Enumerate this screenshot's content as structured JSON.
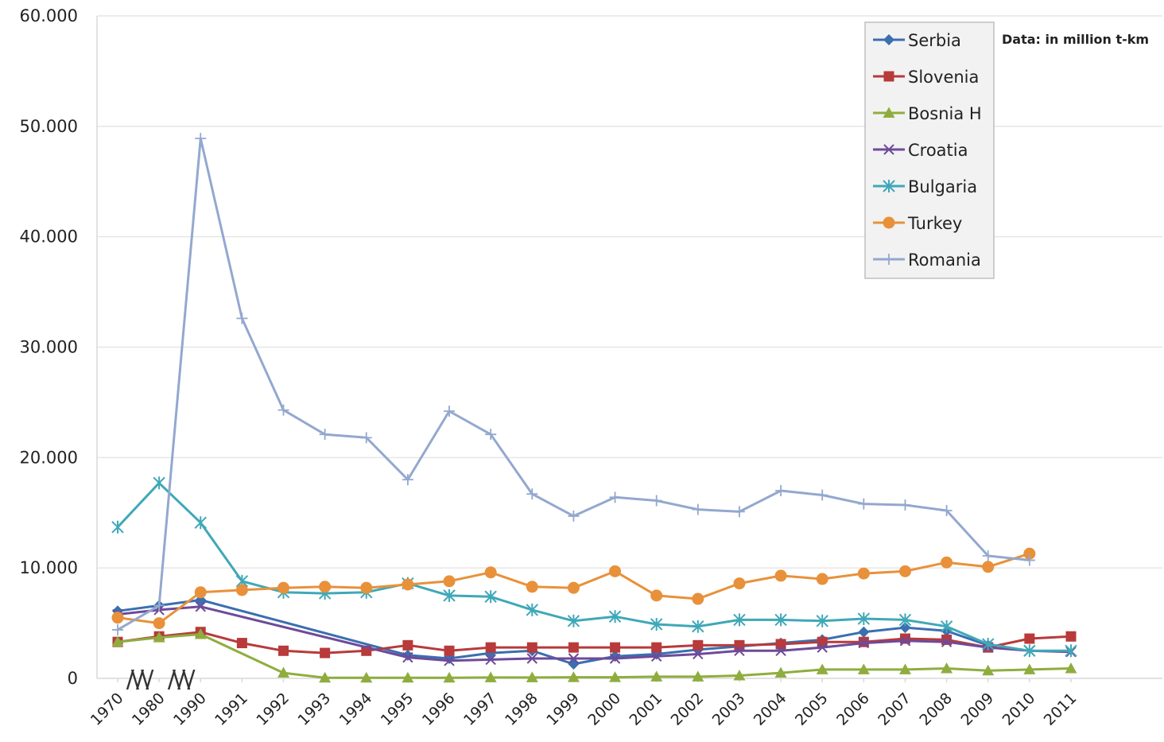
{
  "chart_data": {
    "type": "line",
    "title": "",
    "xlabel": "",
    "ylabel": "",
    "note": "Data: in million t-km",
    "x": [
      "1970",
      "1980",
      "1990",
      "1991",
      "1992",
      "1993",
      "1994",
      "1995",
      "1996",
      "1997",
      "1998",
      "1999",
      "2000",
      "2001",
      "2002",
      "2003",
      "2004",
      "2005",
      "2006",
      "2007",
      "2008",
      "2009",
      "2010",
      "2011"
    ],
    "ylim": [
      0,
      60000
    ],
    "yticks": [
      0,
      10000,
      20000,
      30000,
      40000,
      50000,
      60000
    ],
    "ytick_labels": [
      "0",
      "10.000",
      "20.000",
      "30.000",
      "40.000",
      "50.000",
      "60.000"
    ],
    "axis_break_labels": [
      "/\\/\\/",
      "/\\/\\/"
    ],
    "grid": true,
    "legend_position": "top-right",
    "series": [
      {
        "name": "Serbia",
        "color": "#3a6fb0",
        "marker": "diamond",
        "values": [
          6100,
          6600,
          7100,
          null,
          null,
          null,
          null,
          2100,
          1800,
          2300,
          2500,
          1300,
          2000,
          2200,
          2600,
          2900,
          3200,
          3500,
          4200,
          4600,
          4300,
          3000,
          null,
          null
        ]
      },
      {
        "name": "Slovenia",
        "color": "#b83a3a",
        "marker": "square",
        "values": [
          3300,
          3800,
          4200,
          3200,
          2500,
          2300,
          2500,
          3000,
          2500,
          2800,
          2800,
          2800,
          2800,
          2800,
          3000,
          3000,
          3100,
          3300,
          3300,
          3600,
          3500,
          2800,
          3600,
          3800
        ]
      },
      {
        "name": "Bosnia H",
        "color": "#8fad3f",
        "marker": "triangle",
        "values": [
          3300,
          3700,
          4000,
          null,
          500,
          50,
          50,
          50,
          50,
          80,
          80,
          100,
          100,
          150,
          150,
          250,
          500,
          800,
          800,
          800,
          900,
          700,
          800,
          900
        ]
      },
      {
        "name": "Croatia",
        "color": "#6e4a9a",
        "marker": "x",
        "values": [
          5800,
          6200,
          6500,
          null,
          null,
          null,
          null,
          1900,
          1600,
          1700,
          1800,
          1800,
          1800,
          2000,
          2200,
          2500,
          2500,
          2800,
          3200,
          3400,
          3300,
          2800,
          2500,
          2400
        ]
      },
      {
        "name": "Bulgaria",
        "color": "#3fa8b8",
        "marker": "star",
        "values": [
          13700,
          17700,
          14100,
          8800,
          7800,
          7700,
          7800,
          8600,
          7500,
          7400,
          6200,
          5200,
          5600,
          4900,
          4700,
          5300,
          5300,
          5200,
          5400,
          5300,
          4700,
          3100,
          2500,
          2500
        ]
      },
      {
        "name": "Turkey",
        "color": "#e8913a",
        "marker": "circle",
        "values": [
          5500,
          5000,
          7800,
          8000,
          8200,
          8300,
          8200,
          8500,
          8800,
          9600,
          8300,
          8200,
          9700,
          7500,
          7200,
          8600,
          9300,
          9000,
          9500,
          9700,
          10500,
          10100,
          11300,
          null
        ]
      },
      {
        "name": "Romania",
        "color": "#93a8cf",
        "marker": "plus",
        "values": [
          4400,
          6600,
          48900,
          32600,
          24300,
          22100,
          21800,
          18000,
          24200,
          22100,
          16700,
          14700,
          16400,
          16100,
          15300,
          15100,
          17000,
          16600,
          15800,
          15700,
          15200,
          11100,
          10700,
          null
        ]
      }
    ]
  }
}
